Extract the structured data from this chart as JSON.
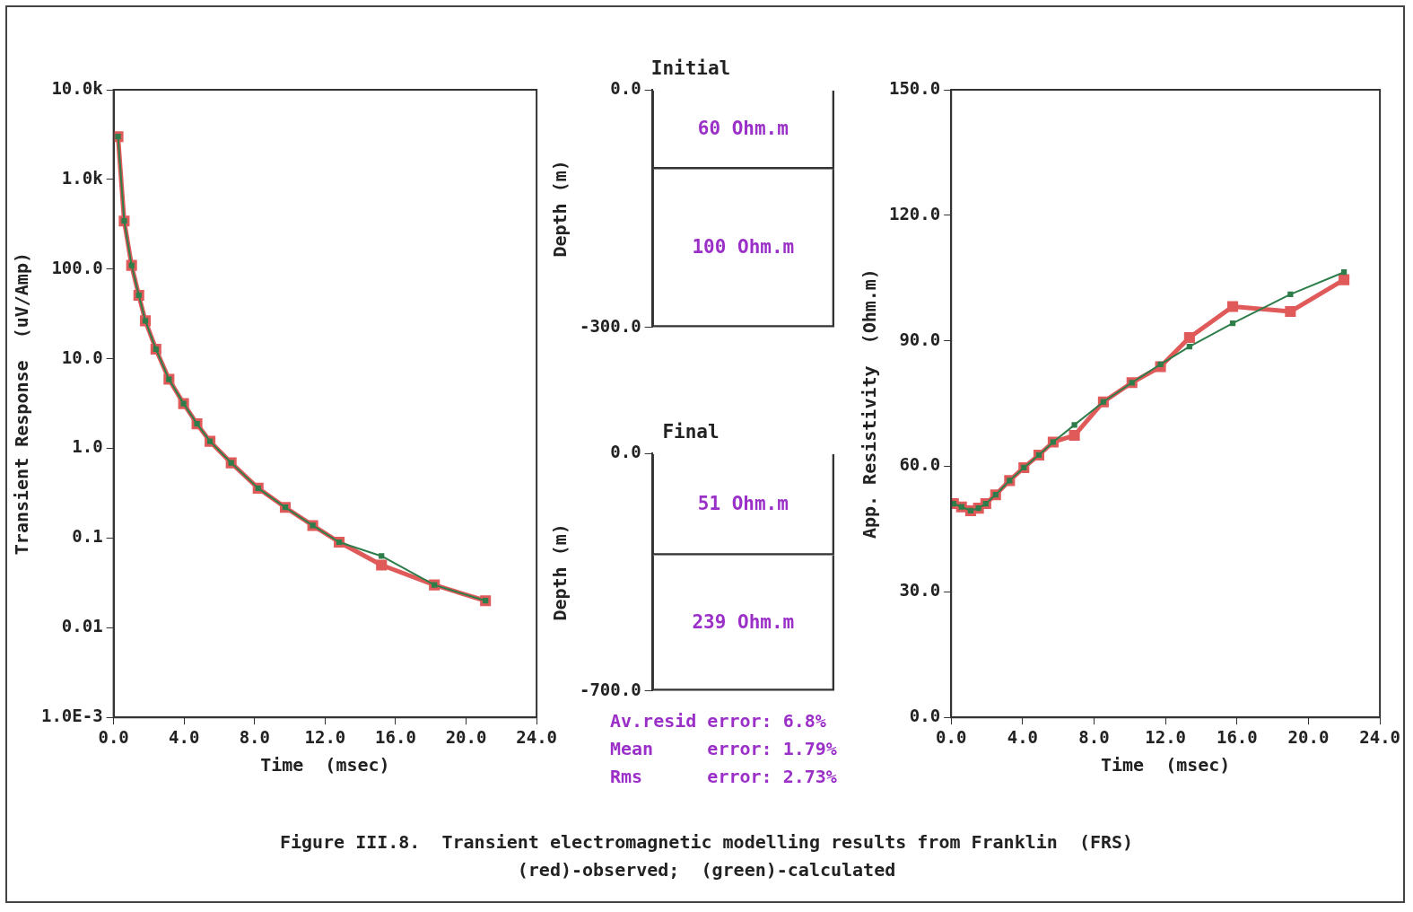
{
  "chart_data": [
    {
      "type": "line",
      "xlabel": "Time  (msec)",
      "ylabel": "Transient Response  (uV/Amp)",
      "log": "y",
      "marker": "square",
      "line_style": "solid",
      "xlim": [
        0,
        24
      ],
      "xticks": [
        {
          "value": 0,
          "label": "0.0"
        },
        {
          "value": 4,
          "label": "4.0"
        },
        {
          "value": 8,
          "label": "8.0"
        },
        {
          "value": 12,
          "label": "12.0"
        },
        {
          "value": 16,
          "label": "16.0"
        },
        {
          "value": 20,
          "label": "20.0"
        },
        {
          "value": 24,
          "label": "24.0"
        }
      ],
      "ylim": [
        0.001,
        10000
      ],
      "yticks": [
        {
          "value": 0.001,
          "label": "1.0E-3"
        },
        {
          "value": 0.01,
          "label": "0.01"
        },
        {
          "value": 0.1,
          "label": "0.1"
        },
        {
          "value": 1,
          "label": "1.0"
        },
        {
          "value": 10,
          "label": "10.0"
        },
        {
          "value": 100,
          "label": "100.0"
        },
        {
          "value": 1000,
          "label": "1.0k"
        },
        {
          "value": 10000,
          "label": "10.0k"
        }
      ],
      "series": [
        {
          "color": "#e05a5a",
          "x": [
            0.25,
            0.6,
            1.02,
            1.43,
            1.8,
            2.4,
            3.14,
            3.97,
            4.73,
            5.47,
            6.67,
            8.2,
            9.74,
            11.3,
            12.8,
            15.2,
            18.2,
            21.1
          ],
          "values": [
            3000,
            344,
            110,
            51,
            26.5,
            12.8,
            5.9,
            3.16,
            1.88,
            1.2,
            0.69,
            0.36,
            0.22,
            0.138,
            0.09,
            0.05,
            0.03,
            0.02
          ]
        },
        {
          "color": "#2e7d4a",
          "x": [
            0.25,
            0.6,
            1.02,
            1.43,
            1.8,
            2.4,
            3.14,
            3.97,
            4.73,
            5.47,
            6.67,
            8.2,
            9.74,
            11.3,
            12.8,
            15.2,
            18.2,
            21.1
          ],
          "values": [
            3000,
            344,
            110,
            51,
            26.5,
            12.8,
            5.9,
            3.16,
            1.88,
            1.2,
            0.69,
            0.36,
            0.22,
            0.138,
            0.09,
            0.063,
            0.03,
            0.02
          ]
        }
      ]
    },
    {
      "type": "bar",
      "title": "Initial",
      "ylabel": "Depth (m)",
      "stacked": true,
      "tick_labels": "y",
      "categories": [
        null
      ],
      "ylim": [
        -300,
        0
      ],
      "yticks": [
        {
          "value": -300,
          "label": "-300.0"
        },
        {
          "value": 0,
          "label": "0.0"
        }
      ],
      "series": [
        {
          "name": "60 Ohm.m",
          "color": "#333333",
          "values": [
            -100
          ]
        },
        {
          "name": "100 Ohm.m",
          "color": "#333333",
          "values": [
            -200
          ]
        }
      ]
    },
    {
      "type": "bar",
      "title": "Final",
      "ylabel": "Depth (m)",
      "stacked": true,
      "tick_labels": "y",
      "categories": [
        null
      ],
      "ylim": [
        -700,
        0
      ],
      "yticks": [
        {
          "value": -700,
          "label": "-700.0"
        },
        {
          "value": 0,
          "label": "0.0"
        }
      ],
      "series": [
        {
          "name": "51 Ohm.m",
          "color": "#333333",
          "values": [
            -300
          ]
        },
        {
          "name": "239 Ohm.m",
          "color": "#333333",
          "values": [
            -400
          ]
        }
      ]
    },
    {
      "type": "line",
      "xlabel": "Time  (msec)",
      "ylabel": "App. Resistivity  (Ohm.m)",
      "marker": "square",
      "line_style": "solid",
      "xlim": [
        0,
        24
      ],
      "xticks": [
        {
          "value": 0,
          "label": "0.0"
        },
        {
          "value": 4,
          "label": "4.0"
        },
        {
          "value": 8,
          "label": "8.0"
        },
        {
          "value": 12,
          "label": "12.0"
        },
        {
          "value": 16,
          "label": "16.0"
        },
        {
          "value": 20,
          "label": "20.0"
        },
        {
          "value": 24,
          "label": "24.0"
        }
      ],
      "ylim": [
        0,
        150
      ],
      "yticks": [
        {
          "value": 0,
          "label": "0.0"
        },
        {
          "value": 30,
          "label": "30.0"
        },
        {
          "value": 60,
          "label": "60.0"
        },
        {
          "value": 90,
          "label": "90.0"
        },
        {
          "value": 120,
          "label": "120.0"
        },
        {
          "value": 150,
          "label": "150.0"
        }
      ],
      "series": [
        {
          "color": "#e05a5a",
          "x": [
            0.13,
            0.58,
            1.09,
            1.53,
            1.94,
            2.49,
            3.27,
            4.07,
            4.91,
            5.71,
            6.9,
            8.52,
            10.12,
            11.72,
            13.34,
            15.76,
            18.99,
            21.99
          ],
          "values": [
            51.1,
            50.3,
            49.4,
            50,
            51.1,
            53.2,
            56.6,
            59.7,
            62.7,
            65.8,
            67.4,
            75.4,
            80,
            83.8,
            90.8,
            98.2,
            97,
            104.6
          ]
        },
        {
          "color": "#2e7d4a",
          "x": [
            0.13,
            0.58,
            1.09,
            1.53,
            1.94,
            2.49,
            3.27,
            4.07,
            4.91,
            5.71,
            6.9,
            8.52,
            10.12,
            11.72,
            13.34,
            15.76,
            18.99,
            21.99
          ],
          "values": [
            51.1,
            50.3,
            49.4,
            50,
            51.1,
            53.2,
            56.6,
            59.7,
            62.7,
            65.8,
            69.9,
            75.4,
            80,
            84.4,
            88.6,
            94.2,
            101.1,
            106.4
          ]
        }
      ]
    },
    {
      "type": "other",
      "annotations": [
        "Av.resid error: 6.8%",
        "Mean     error: 1.79%",
        "Rms      error: 2.73%"
      ]
    },
    {
      "type": "other",
      "annotations": [
        "Figure III.8.  Transient electromagnetic modelling results from Franklin  (FRS)",
        "(red)-observed;  (green)-calculated"
      ]
    }
  ]
}
